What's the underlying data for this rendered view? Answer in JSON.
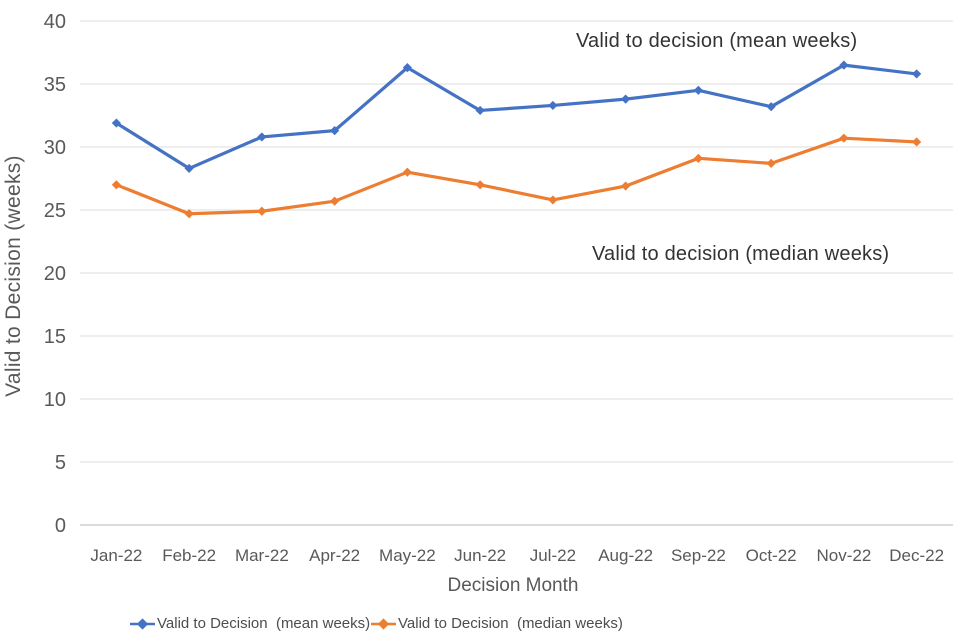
{
  "chart_data": {
    "type": "line",
    "title": "",
    "xlabel": "Decision Month",
    "ylabel": "Valid to Decision (weeks)",
    "categories": [
      "Jan-22",
      "Feb-22",
      "Mar-22",
      "Apr-22",
      "May-22",
      "Jun-22",
      "Jul-22",
      "Aug-22",
      "Sep-22",
      "Oct-22",
      "Nov-22",
      "Dec-22"
    ],
    "series": [
      {
        "name": "Valid to Decision  (mean weeks)",
        "color": "#4472C4",
        "values": [
          31.9,
          28.3,
          30.8,
          31.3,
          36.3,
          32.9,
          33.3,
          33.8,
          34.5,
          33.2,
          36.5,
          35.8
        ]
      },
      {
        "name": "Valid to Decision  (median weeks)",
        "color": "#ED7D31",
        "values": [
          27.0,
          24.7,
          24.9,
          25.7,
          28.0,
          27.0,
          25.8,
          26.9,
          29.1,
          28.7,
          30.7,
          30.4
        ]
      }
    ],
    "ylim": [
      0,
      40
    ],
    "yticks": [
      0,
      5,
      10,
      15,
      20,
      25,
      30,
      35,
      40
    ],
    "grid": true,
    "legend_position": "bottom",
    "annotations": [
      {
        "text": "Valid to decision (mean weeks)",
        "series": "mean"
      },
      {
        "text": "Valid to decision (median weeks)",
        "series": "median"
      }
    ]
  },
  "colors": {
    "grid": "#dcdcdc",
    "zero_line": "#cfcfcf",
    "axis_text": "#595959",
    "annotation_text": "#333333",
    "background": "#ffffff"
  }
}
